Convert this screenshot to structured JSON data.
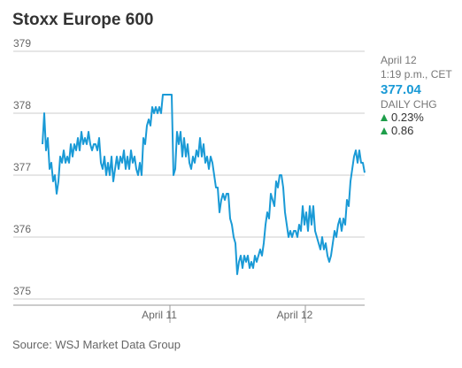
{
  "chart_data": {
    "type": "line",
    "title": "Stoxx Europe 600",
    "source": "Source: WSJ Market Data Group",
    "x": [
      0,
      1,
      2,
      3,
      4,
      5,
      6,
      7,
      8,
      9,
      10,
      11,
      12,
      13,
      14,
      15,
      16,
      17,
      18,
      19,
      20,
      21,
      22,
      23,
      24,
      25,
      26,
      27,
      28,
      29,
      30,
      31,
      32,
      33,
      34,
      35,
      36,
      37,
      38,
      39,
      40,
      41,
      42,
      43,
      44,
      45,
      46,
      47,
      48,
      49,
      50,
      51,
      52,
      53,
      54,
      55,
      56,
      57,
      58,
      59,
      60,
      61,
      62,
      63,
      64,
      65,
      66,
      67,
      68,
      69,
      70,
      71,
      72,
      73,
      74,
      75,
      76,
      77,
      78,
      79,
      80,
      81,
      82,
      83,
      84,
      85,
      86,
      87,
      88,
      89,
      90,
      91,
      92,
      93,
      94,
      95,
      96,
      97,
      98,
      99,
      100,
      101,
      102,
      103,
      104,
      105,
      106,
      107,
      108,
      109,
      110,
      111,
      112,
      113,
      114,
      115,
      116,
      117,
      118,
      119,
      120,
      121,
      122,
      123,
      124,
      125,
      126,
      127,
      128,
      129,
      130,
      131,
      132,
      133,
      134,
      135,
      136,
      137,
      138,
      139,
      140,
      141,
      142,
      143,
      144,
      145,
      146,
      147,
      148,
      149,
      150,
      151,
      152,
      153,
      154,
      155,
      156,
      157,
      158,
      159,
      160,
      161,
      162,
      163,
      164,
      165,
      166,
      167,
      168,
      169,
      170,
      171,
      172,
      173,
      174,
      175,
      176,
      177,
      178,
      179,
      180,
      181,
      182
    ],
    "series": [
      {
        "name": "Stoxx Europe 600",
        "color": "#1a9ad6",
        "values": [
          377.5,
          378.0,
          377.4,
          377.6,
          377.1,
          377.2,
          376.9,
          377.0,
          376.7,
          376.9,
          377.3,
          377.2,
          377.4,
          377.2,
          377.3,
          377.2,
          377.5,
          377.3,
          377.5,
          377.4,
          377.6,
          377.4,
          377.7,
          377.5,
          377.6,
          377.5,
          377.7,
          377.5,
          377.4,
          377.5,
          377.5,
          377.4,
          377.6,
          377.2,
          377.1,
          377.3,
          377.0,
          377.2,
          377.0,
          377.3,
          376.9,
          377.1,
          377.3,
          377.1,
          377.3,
          377.2,
          377.4,
          377.1,
          377.3,
          377.1,
          377.4,
          377.2,
          377.3,
          377.1,
          377.0,
          377.2,
          377.0,
          377.6,
          377.5,
          377.8,
          377.9,
          377.8,
          378.1,
          378.0,
          378.1,
          378.0,
          378.1,
          378.0,
          378.3,
          378.3,
          378.3,
          378.3,
          378.3,
          378.3,
          377.0,
          377.1,
          377.7,
          377.5,
          377.7,
          377.3,
          377.6,
          377.3,
          377.5,
          377.2,
          377.1,
          377.3,
          377.2,
          377.4,
          377.3,
          377.6,
          377.3,
          377.5,
          377.2,
          377.3,
          377.1,
          377.3,
          377.2,
          377.0,
          376.8,
          376.8,
          376.4,
          376.6,
          376.7,
          376.6,
          376.7,
          376.7,
          376.3,
          376.2,
          376.0,
          375.9,
          375.4,
          375.6,
          375.7,
          375.5,
          375.7,
          375.6,
          375.7,
          375.5,
          375.6,
          375.5,
          375.7,
          375.6,
          375.7,
          375.8,
          375.7,
          375.9,
          376.2,
          376.4,
          376.3,
          376.7,
          376.6,
          376.5,
          376.9,
          376.8,
          377.0,
          377.0,
          376.8,
          376.4,
          376.2,
          376.0,
          376.1,
          376.0,
          376.1,
          376.1,
          376.0,
          376.2,
          376.1,
          376.5,
          376.2,
          376.4,
          376.1,
          376.5,
          376.2,
          376.5,
          376.1,
          376.0,
          375.9,
          375.8,
          376.0,
          375.8,
          375.9,
          375.7,
          375.6,
          375.7,
          375.9,
          376.1,
          376.0,
          376.2,
          376.3,
          376.1,
          376.3,
          376.2,
          376.6,
          376.5,
          376.9,
          377.1,
          377.3,
          377.4,
          377.2,
          377.4,
          377.2,
          377.2,
          377.04
        ]
      }
    ],
    "xlim": [
      -16.5,
      182
    ],
    "xticks": [
      {
        "value": 72,
        "label": "April 11"
      },
      {
        "value": 148.5,
        "label": "April 12"
      }
    ],
    "ylim": [
      374.9,
      379.1
    ],
    "yticks": [
      375,
      376,
      377,
      378,
      379
    ],
    "grid": true,
    "panel": {
      "date": "April 12",
      "time": "1:19 p.m., CET",
      "last": "377.04",
      "change_label": "DAILY CHG",
      "change_pct": "0.23%",
      "change_pts": "0.86"
    }
  }
}
